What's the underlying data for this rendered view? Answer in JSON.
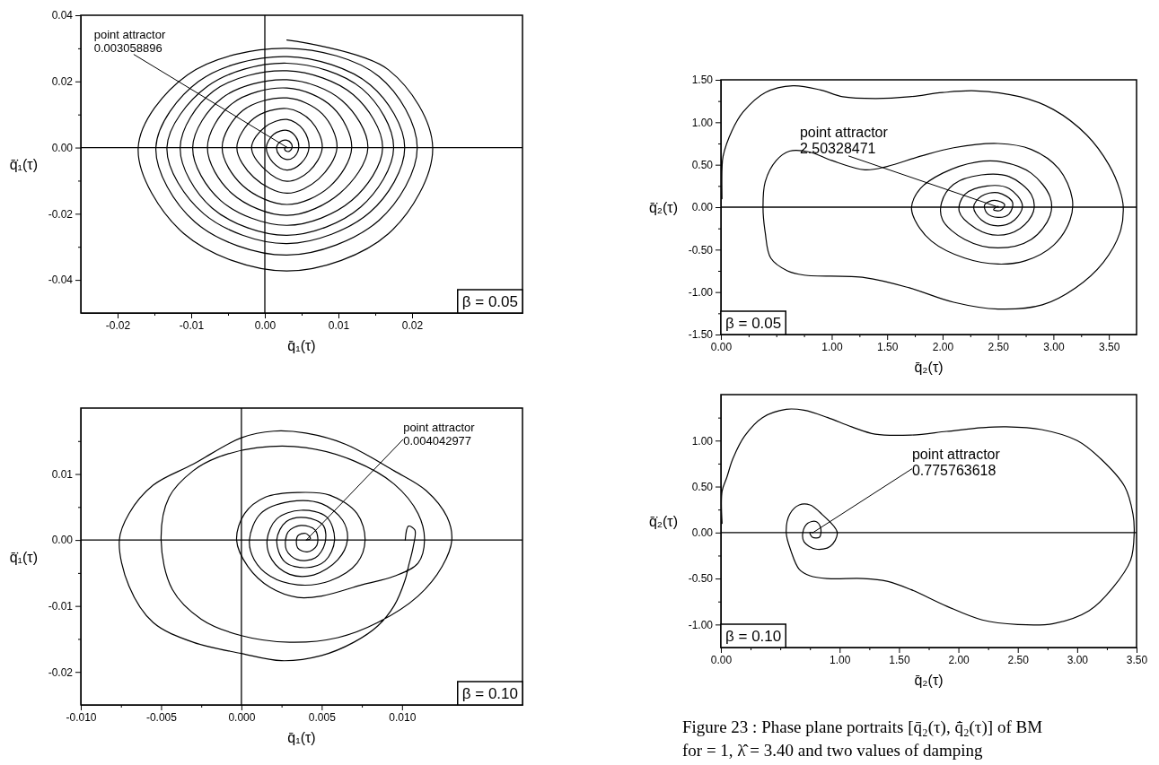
{
  "chart_data": [
    {
      "type": "line",
      "xlabel": "q̄₁(τ)",
      "ylabel": "q̄̇₁(τ)",
      "xlim": [
        -0.025,
        0.035
      ],
      "ylim": [
        -0.05,
        0.04
      ],
      "xticks": [
        {
          "value": -0.02,
          "label": "-0.02"
        },
        {
          "value": -0.01,
          "label": "-0.01"
        },
        {
          "value": 0,
          "label": "0.00"
        },
        {
          "value": 0.01,
          "label": "0.01"
        },
        {
          "value": 0.02,
          "label": "0.02"
        },
        {
          "value": -0.015,
          "label": null
        },
        {
          "value": -0.005,
          "label": null
        },
        {
          "value": 0.005,
          "label": null
        },
        {
          "value": 0.015,
          "label": null
        }
      ],
      "yticks": [
        {
          "value": 0.04,
          "label": "0.04"
        },
        {
          "value": 0.02,
          "label": "0.02"
        },
        {
          "value": 0,
          "label": "0.00"
        },
        {
          "value": -0.02,
          "label": "-0.02"
        },
        {
          "value": -0.04,
          "label": "-0.04"
        },
        {
          "value": 0.03,
          "label": null
        },
        {
          "value": 0.01,
          "label": null
        },
        {
          "value": -0.01,
          "label": null
        },
        {
          "value": -0.03,
          "label": null
        }
      ],
      "ref_lines": [
        {
          "axis": "x",
          "value": 0,
          "color": "#000000"
        },
        {
          "axis": "y",
          "value": 0,
          "color": "#000000"
        }
      ],
      "series": [
        {
          "color": "#000000",
          "x": [
            0.003,
            0.0168,
            0.0228,
            0.0168,
            0.003,
            -0.011,
            -0.0172,
            -0.0105,
            0.003,
            0.0155,
            0.0207,
            0.0155,
            0.003,
            -0.0095,
            -0.0148,
            -0.009,
            0.003,
            0.0143,
            0.019,
            0.0143,
            0.003,
            -0.0083,
            -0.0133,
            -0.0078,
            0.003,
            0.0132,
            0.0175,
            0.013,
            0.003,
            -0.0072,
            -0.0115,
            -0.007,
            0.003,
            0.012,
            0.016,
            0.0118,
            0.003,
            -0.006,
            -0.0098,
            -0.0058,
            0.003,
            0.0105,
            0.014,
            0.0102,
            0.003,
            -0.0045,
            -0.0078,
            -0.0045,
            0.003,
            0.0092,
            0.0118,
            0.0088,
            0.003,
            -0.003,
            -0.0058,
            -0.003,
            0.003,
            0.0078,
            0.0098,
            0.0073,
            0.003,
            -0.0015,
            -0.0038,
            -0.0015,
            0.003,
            0.0063,
            0.0078,
            0.006,
            0.003,
            0,
            -0.0018,
            0,
            0.003,
            0.0052,
            0.006,
            0.0049,
            0.003,
            0.0011,
            0.0002,
            0.0012,
            0.003,
            0.0042,
            0.0046,
            0.004,
            0.003,
            0.002,
            0.0016,
            0.0021,
            0.003,
            0.0036,
            0.0037,
            0.0034,
            0.0031,
            0.0027,
            0.0028,
            0.00306
          ],
          "values": [
            0.0325,
            0.0235,
            0,
            -0.026,
            -0.0373,
            -0.026,
            0,
            0.022,
            0.03,
            0.0215,
            0,
            -0.022,
            -0.0325,
            -0.0225,
            0,
            0.02,
            0.0275,
            0.019,
            0,
            -0.0195,
            -0.029,
            -0.02,
            0,
            0.0185,
            0.0255,
            0.0178,
            0,
            -0.018,
            -0.0265,
            -0.0182,
            0,
            0.017,
            0.0232,
            0.016,
            0,
            -0.016,
            -0.0235,
            -0.016,
            0,
            0.015,
            0.0205,
            0.0142,
            0,
            -0.0138,
            -0.0205,
            -0.0138,
            0,
            0.0132,
            0.018,
            0.0122,
            0,
            -0.0118,
            -0.0172,
            -0.0115,
            0,
            0.0112,
            0.015,
            0.0102,
            0,
            -0.0095,
            -0.0138,
            -0.009,
            0,
            0.0088,
            0.0118,
            0.008,
            0,
            -0.0072,
            -0.0102,
            -0.0066,
            0,
            0.0062,
            0.0085,
            0.0055,
            0,
            -0.0048,
            -0.0068,
            -0.0045,
            0,
            0.004,
            0.0052,
            0.0033,
            0,
            -0.0028,
            -0.0036,
            -0.0024,
            0,
            0.0018,
            0.0022,
            0.0012,
            0,
            -0.001,
            -0.0012,
            -0.0006,
            0,
            0
          ]
        }
      ],
      "annotations": [
        {
          "text": "point attractor\n0.003058896",
          "x": 0.003058896,
          "y": 0
        },
        "β = 0.05"
      ]
    },
    {
      "type": "line",
      "xlabel": "q̄₁(τ)",
      "ylabel": "q̄̇₁(τ)",
      "xlim": [
        -0.01,
        0.0175
      ],
      "ylim": [
        -0.025,
        0.02
      ],
      "xticks": [
        {
          "value": -0.01,
          "label": "-0.010"
        },
        {
          "value": -0.005,
          "label": "-0.005"
        },
        {
          "value": 0,
          "label": "0.000"
        },
        {
          "value": 0.005,
          "label": "0.005"
        },
        {
          "value": 0.01,
          "label": "0.010"
        },
        {
          "value": -0.0075,
          "label": null
        },
        {
          "value": -0.0025,
          "label": null
        },
        {
          "value": 0.0025,
          "label": null
        },
        {
          "value": 0.0075,
          "label": null
        }
      ],
      "yticks": [
        {
          "value": 0.01,
          "label": "0.01"
        },
        {
          "value": 0,
          "label": "0.00"
        },
        {
          "value": -0.01,
          "label": "-0.01"
        },
        {
          "value": -0.02,
          "label": "-0.02"
        },
        {
          "value": 0.015,
          "label": null
        },
        {
          "value": 0.005,
          "label": null
        },
        {
          "value": -0.005,
          "label": null
        },
        {
          "value": -0.015,
          "label": null
        }
      ],
      "ref_lines": [
        {
          "axis": "x",
          "value": 0,
          "color": "#000000"
        },
        {
          "axis": "y",
          "value": 0,
          "color": "#000000"
        }
      ],
      "series": [
        {
          "color": "#000000",
          "x": [
            0.0102,
            0.0104,
            0.0108,
            0.0107,
            0.0104,
            0.0102,
            0.0095,
            0.0085,
            0.007,
            0.005,
            0.0025,
            0,
            -0.003,
            -0.0055,
            -0.007,
            -0.0076,
            -0.007,
            -0.0055,
            -0.003,
            0,
            0.002,
            0.004,
            0.0065,
            0.0095,
            0.0115,
            0.0128,
            0.0131,
            0.0125,
            0.011,
            0.0085,
            0.006,
            0.003,
            0,
            -0.0025,
            -0.0043,
            -0.005,
            -0.0045,
            -0.003,
            -0.0015,
            0.001,
            0.004,
            0.007,
            0.0095,
            0.011,
            0.0114,
            0.011,
            0.0095,
            0.0075,
            0.005,
            0.0035,
            0.0018,
            0.0004,
            -0.0003,
            0.0002,
            0.0015,
            0.0035,
            0.0055,
            0.0072,
            0.0077,
            0.0072,
            0.0055,
            0.0035,
            0.0018,
            0.0008,
            0.0005,
            0.0012,
            0.003,
            0.005,
            0.0063,
            0.0066,
            0.006,
            0.0045,
            0.003,
            0.0019,
            0.0016,
            0.0022,
            0.0037,
            0.0053,
            0.0058,
            0.0052,
            0.004,
            0.0027,
            0.0022,
            0.0028,
            0.004,
            0.0051,
            0.0052,
            0.0046,
            0.0035,
            0.0028,
            0.0029,
            0.0037,
            0.0046,
            0.0047,
            0.0041,
            0.0035,
            0.0035,
            0.004,
            0.0043,
            0.00404
          ],
          "values": [
            0,
            0.0021,
            0.0015,
            -0.001,
            -0.004,
            -0.006,
            -0.01,
            -0.013,
            -0.0155,
            -0.0175,
            -0.0183,
            -0.0172,
            -0.0155,
            -0.0125,
            -0.007,
            0,
            0.004,
            0.0083,
            0.0115,
            0.0155,
            0.0165,
            0.0162,
            0.0145,
            0.0105,
            0.0075,
            0.0035,
            0,
            -0.004,
            -0.0085,
            -0.0125,
            -0.0148,
            -0.0155,
            -0.0145,
            -0.012,
            -0.0075,
            0,
            0.0065,
            0.0105,
            0.0125,
            0.014,
            0.014,
            0.012,
            0.0085,
            0.004,
            0,
            -0.0035,
            -0.0055,
            -0.0068,
            -0.0085,
            -0.0087,
            -0.0072,
            -0.004,
            0,
            0.004,
            0.0065,
            0.0072,
            0.0068,
            0.004,
            0,
            -0.0035,
            -0.0062,
            -0.0068,
            -0.0055,
            -0.003,
            0,
            0.004,
            0.0058,
            0.0055,
            0.003,
            0,
            -0.003,
            -0.0053,
            -0.0052,
            -0.003,
            0,
            0.0032,
            0.0045,
            0.0035,
            0,
            -0.0032,
            -0.0042,
            -0.0033,
            0,
            0.0028,
            0.0034,
            0.0022,
            -0.0005,
            -0.0027,
            -0.003,
            -0.0015,
            0.0012,
            0.0022,
            0.0015,
            -0.0008,
            -0.0018,
            -0.0012,
            0.0006,
            0.001,
            0.0002,
            0
          ]
        }
      ],
      "annotations": [
        {
          "text": "point attractor\n0.004042977",
          "x": 0.004042977,
          "y": 0
        },
        "β = 0.10"
      ]
    },
    {
      "type": "line",
      "xlabel": "q̄₂(τ)",
      "ylabel": "q̄̇₂(τ)",
      "xlim": [
        0,
        3.75
      ],
      "ylim": [
        -1.5,
        1.5
      ],
      "xticks": [
        {
          "value": 0,
          "label": "0.00"
        },
        {
          "value": 1,
          "label": "1.00"
        },
        {
          "value": 1.5,
          "label": "1.50"
        },
        {
          "value": 2,
          "label": "2.00"
        },
        {
          "value": 2.5,
          "label": "2.50"
        },
        {
          "value": 3,
          "label": "3.00"
        },
        {
          "value": 3.5,
          "label": "3.50"
        },
        {
          "value": 0.5,
          "label": null
        },
        {
          "value": 0.25,
          "label": null
        },
        {
          "value": 0.75,
          "label": null
        },
        {
          "value": 1.25,
          "label": null
        },
        {
          "value": 1.75,
          "label": null
        },
        {
          "value": 2.25,
          "label": null
        },
        {
          "value": 2.75,
          "label": null
        },
        {
          "value": 3.25,
          "label": null
        }
      ],
      "yticks": [
        {
          "value": 1.5,
          "label": "1.50"
        },
        {
          "value": 1,
          "label": "1.00"
        },
        {
          "value": 0.5,
          "label": "0.50"
        },
        {
          "value": 0,
          "label": "0.00"
        },
        {
          "value": -0.5,
          "label": "-0.50"
        },
        {
          "value": -1,
          "label": "-1.00"
        },
        {
          "value": -1.5,
          "label": "-1.50"
        },
        {
          "value": 1.25,
          "label": null
        },
        {
          "value": 0.75,
          "label": null
        },
        {
          "value": 0.25,
          "label": null
        },
        {
          "value": -0.25,
          "label": null
        },
        {
          "value": -0.75,
          "label": null
        },
        {
          "value": -1.25,
          "label": null
        }
      ],
      "ref_lines": [
        {
          "axis": "y",
          "value": 0,
          "color": "#000000"
        }
      ],
      "series": [
        {
          "color": "#000000",
          "x": [
            0.01,
            0.01,
            0.02,
            0.1,
            0.2,
            0.4,
            0.65,
            0.9,
            1.1,
            1.4,
            1.7,
            2,
            2.3,
            2.7,
            3,
            3.3,
            3.5,
            3.6,
            3.63,
            3.6,
            3.45,
            3.2,
            2.9,
            2.5,
            2.1,
            1.7,
            1.3,
            0.75,
            0.6,
            0.45,
            0.4,
            0.38,
            0.4,
            0.5,
            0.62,
            0.8,
            1,
            1.3,
            1.5,
            1.8,
            2.1,
            2.5,
            2.8,
            3.05,
            3.17,
            3.15,
            3,
            2.75,
            2.5,
            2.2,
            1.9,
            1.75,
            1.72,
            1.8,
            2,
            2.3,
            2.55,
            2.8,
            2.97,
            2.97,
            2.8,
            2.5,
            2.2,
            2,
            1.99,
            2.1,
            2.35,
            2.6,
            2.8,
            2.82,
            2.7,
            2.5,
            2.3,
            2.15,
            2.2,
            2.4,
            2.6,
            2.72,
            2.65,
            2.5,
            2.35,
            2.28,
            2.35,
            2.5,
            2.63,
            2.6,
            2.5,
            2.4,
            2.38,
            2.47,
            2.56,
            2.52,
            2.46,
            2.5,
            2.503
          ],
          "values": [
            0.1,
            0.45,
            0.6,
            0.9,
            1.12,
            1.35,
            1.43,
            1.38,
            1.3,
            1.28,
            1.3,
            1.35,
            1.37,
            1.3,
            1.15,
            0.85,
            0.5,
            0.2,
            0,
            -0.3,
            -0.65,
            -0.95,
            -1.15,
            -1.2,
            -1.12,
            -0.95,
            -0.83,
            -0.8,
            -0.75,
            -0.6,
            -0.3,
            0,
            0.3,
            0.55,
            0.66,
            0.65,
            0.55,
            0.44,
            0.48,
            0.6,
            0.7,
            0.75,
            0.68,
            0.45,
            0.1,
            -0.15,
            -0.45,
            -0.63,
            -0.67,
            -0.6,
            -0.4,
            -0.15,
            0,
            0.22,
            0.4,
            0.53,
            0.53,
            0.4,
            0.12,
            -0.1,
            -0.38,
            -0.48,
            -0.38,
            -0.15,
            0.05,
            0.27,
            0.38,
            0.36,
            0.15,
            -0.05,
            -0.25,
            -0.33,
            -0.25,
            -0.05,
            0.15,
            0.25,
            0.22,
            0.02,
            -0.15,
            -0.22,
            -0.15,
            0,
            0.13,
            0.17,
            0.06,
            -0.08,
            -0.12,
            -0.07,
            0.03,
            0.08,
            0.03,
            -0.04,
            -0.03,
            0.01,
            0
          ]
        }
      ],
      "annotations": [
        {
          "text": "point attractor\n2.50328471",
          "x": 2.50328471,
          "y": 0
        },
        "β = 0.05"
      ]
    },
    {
      "type": "line",
      "xlabel": "q̄₂(τ)",
      "ylabel": "q̄̇₂(τ)",
      "xlim": [
        0,
        3.5
      ],
      "ylim": [
        -1.25,
        1.5
      ],
      "xticks": [
        {
          "value": 0,
          "label": "0.00"
        },
        {
          "value": 1,
          "label": "1.00"
        },
        {
          "value": 1.5,
          "label": "1.50"
        },
        {
          "value": 2,
          "label": "2.00"
        },
        {
          "value": 2.5,
          "label": "2.50"
        },
        {
          "value": 3,
          "label": "3.00"
        },
        {
          "value": 3.5,
          "label": "3.50"
        },
        {
          "value": 0.5,
          "label": null
        },
        {
          "value": 0.25,
          "label": null
        },
        {
          "value": 0.75,
          "label": null
        },
        {
          "value": 1.25,
          "label": null
        },
        {
          "value": 1.75,
          "label": null
        },
        {
          "value": 2.25,
          "label": null
        },
        {
          "value": 2.75,
          "label": null
        },
        {
          "value": 3.25,
          "label": null
        }
      ],
      "yticks": [
        {
          "value": 1,
          "label": "1.00"
        },
        {
          "value": 0.5,
          "label": "0.50"
        },
        {
          "value": 0,
          "label": "0.00"
        },
        {
          "value": -0.5,
          "label": "-0.50"
        },
        {
          "value": -1,
          "label": "-1.00"
        },
        {
          "value": 1.25,
          "label": null
        },
        {
          "value": 0.75,
          "label": null
        },
        {
          "value": 0.25,
          "label": null
        },
        {
          "value": -0.25,
          "label": null
        },
        {
          "value": -0.75,
          "label": null
        }
      ],
      "ref_lines": [
        {
          "axis": "y",
          "value": 0,
          "color": "#000000"
        }
      ],
      "series": [
        {
          "color": "#000000",
          "x": [
            0.01,
            0.01,
            0.05,
            0.1,
            0.2,
            0.35,
            0.55,
            0.7,
            0.9,
            1.1,
            1.3,
            1.6,
            1.9,
            2.2,
            2.4,
            2.7,
            3,
            3.2,
            3.4,
            3.47,
            3.48,
            3.45,
            3.3,
            3.1,
            2.8,
            2.5,
            2.2,
            1.9,
            1.6,
            1.4,
            1.2,
            0.9,
            0.75,
            0.66,
            0.59,
            0.55,
            0.58,
            0.66,
            0.75,
            0.85,
            0.98,
            0.92,
            0.8,
            0.7,
            0.69,
            0.73,
            0.8,
            0.84,
            0.83,
            0.77,
            0.75,
            0.776
          ],
          "values": [
            0.1,
            0.45,
            0.6,
            0.8,
            1.05,
            1.25,
            1.34,
            1.33,
            1.25,
            1.15,
            1.07,
            1.06,
            1.1,
            1.14,
            1.15,
            1.12,
            1,
            0.8,
            0.5,
            0.2,
            0,
            -0.3,
            -0.6,
            -0.85,
            -0.99,
            -1,
            -0.95,
            -0.8,
            -0.62,
            -0.53,
            -0.5,
            -0.5,
            -0.47,
            -0.4,
            -0.2,
            0,
            0.2,
            0.3,
            0.3,
            0.2,
            0,
            -0.15,
            -0.18,
            -0.1,
            0,
            0.1,
            0.12,
            0.05,
            -0.05,
            -0.05,
            0,
            0
          ]
        }
      ],
      "annotations": [
        {
          "text": "point attractor\n0.775763618",
          "x": 0.775763618,
          "y": 0
        },
        "β = 0.10",
        "Figure 23 : Phase plane portraits [q̄₂(τ), q̄̇₂(τ)] of BM",
        "for = 1, λ̂ = 3.40 and two values of damping"
      ]
    }
  ]
}
